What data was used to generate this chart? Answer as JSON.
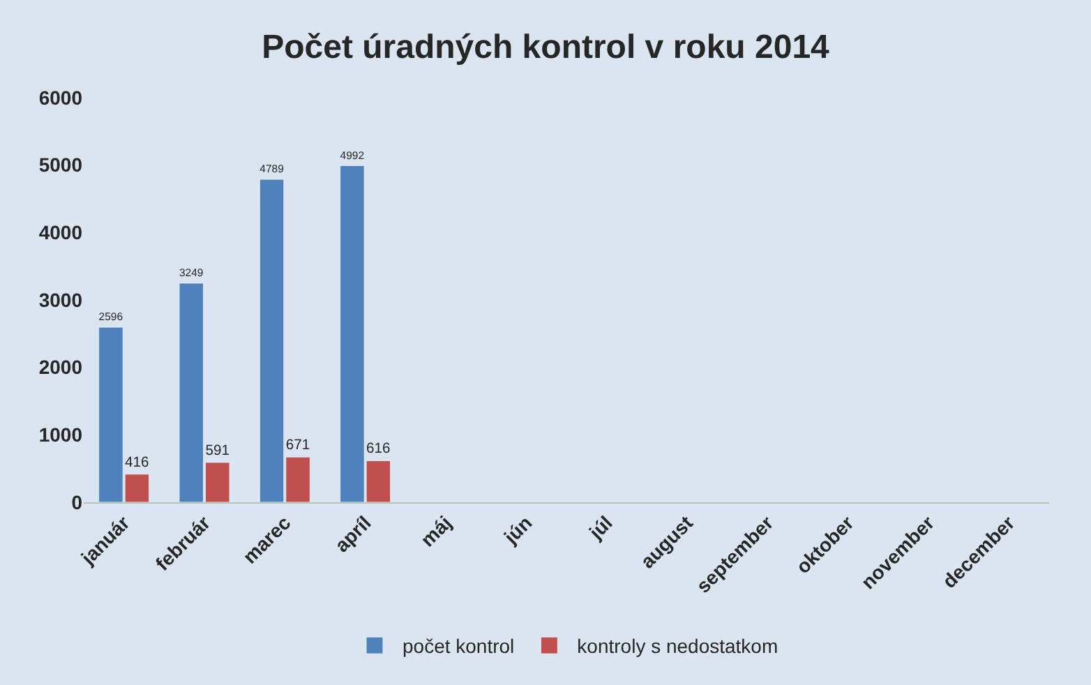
{
  "chart_data": {
    "type": "bar",
    "title": "Počet úradných kontrol v roku 2014",
    "categories": [
      "január",
      "február",
      "marec",
      "apríl",
      "máj",
      "jún",
      "júl",
      "august",
      "september",
      "oktober",
      "november",
      "december"
    ],
    "series": [
      {
        "name": "počet kontrol",
        "color": "#4f81bd",
        "values": [
          2596,
          3249,
          4789,
          4992,
          null,
          null,
          null,
          null,
          null,
          null,
          null,
          null
        ]
      },
      {
        "name": "kontroly s nedostatkom",
        "color": "#c0504d",
        "values": [
          416,
          591,
          671,
          616,
          null,
          null,
          null,
          null,
          null,
          null,
          null,
          null
        ]
      }
    ],
    "ylim": [
      0,
      6000
    ],
    "yticks": [
      0,
      1000,
      2000,
      3000,
      4000,
      5000,
      6000
    ],
    "grid": false,
    "legend": "bottom",
    "data_labels": true
  }
}
